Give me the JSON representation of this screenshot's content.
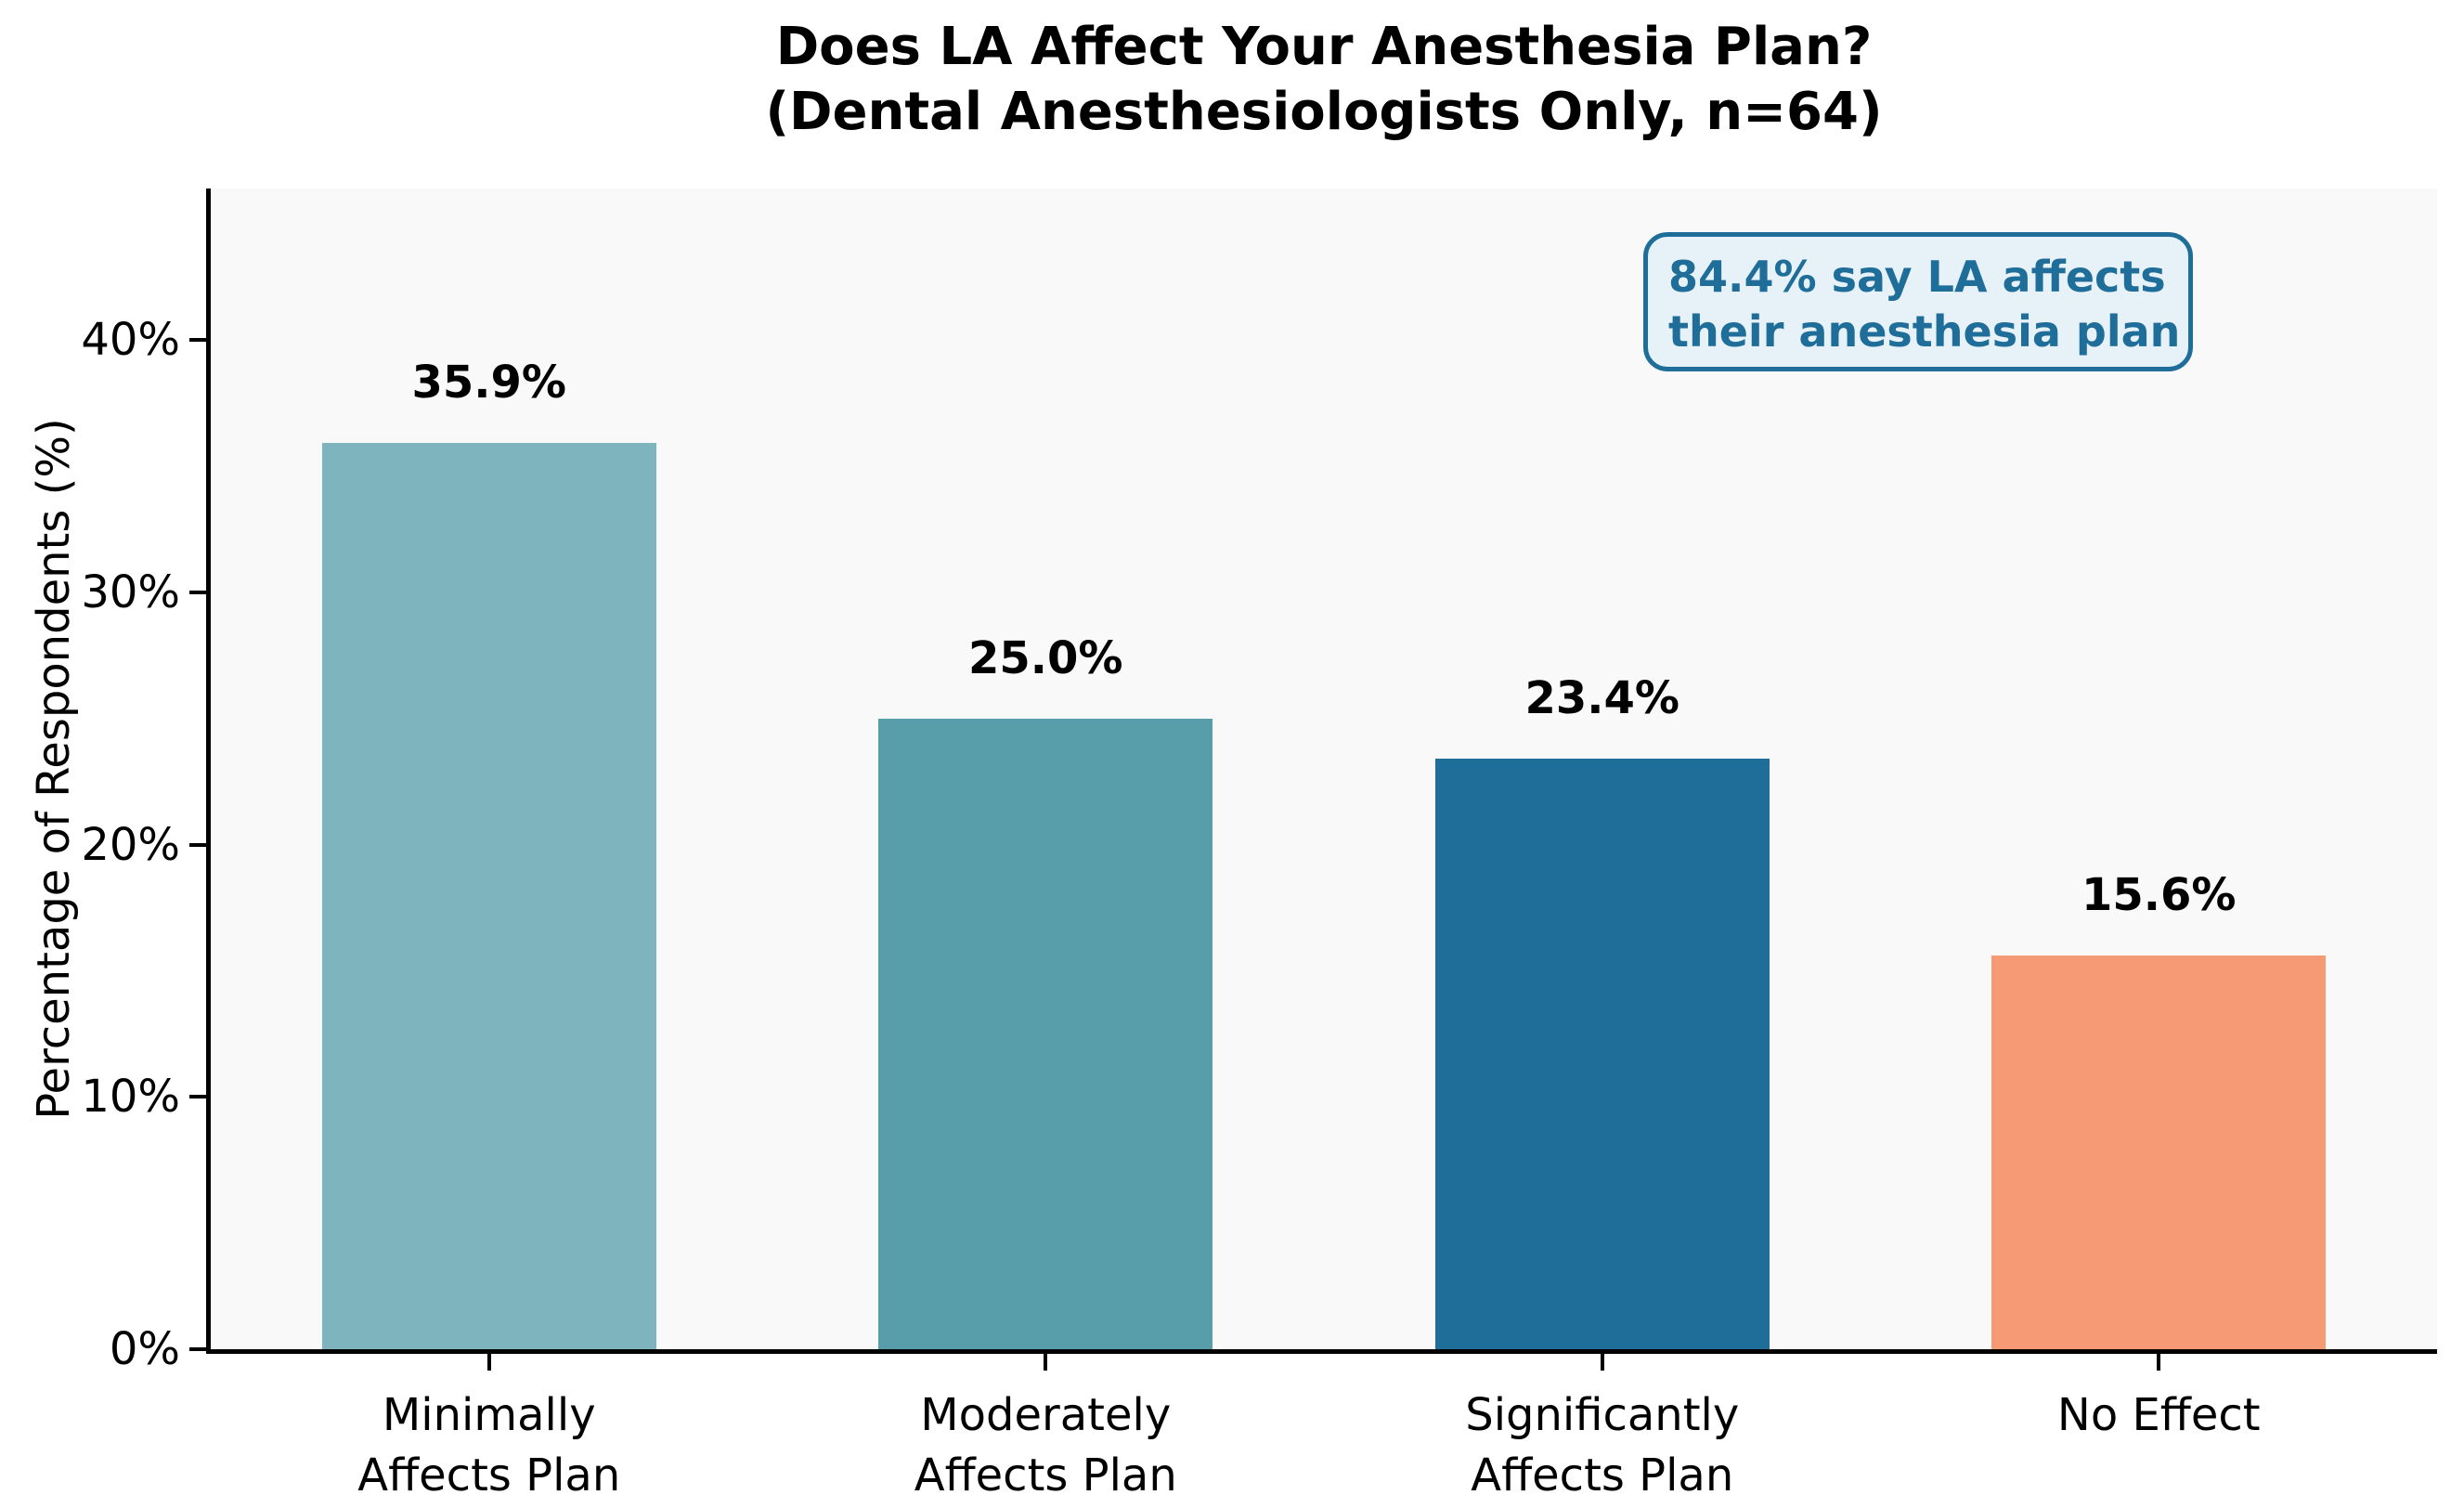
{
  "title": {
    "line1": "Does LA Affect Your Anesthesia Plan?",
    "line2": "(Dental Anesthesiologists Only, n=64)"
  },
  "annotation": {
    "line1": "84.4% say LA affects",
    "line2": "their anesthesia plan",
    "text_color": "#1f6e99",
    "border_color": "#1f6e99",
    "background_color": "#e7f1f8"
  },
  "chart_data": {
    "type": "bar",
    "title": "Does LA Affect Your Anesthesia Plan?\n(Dental Anesthesiologists Only, n=64)",
    "categories": [
      "Minimally\nAffects Plan",
      "Moderately\nAffects Plan",
      "Significantly\nAffects Plan",
      "No Effect"
    ],
    "values": [
      35.9,
      25.0,
      23.4,
      15.6
    ],
    "value_labels": [
      "35.9%",
      "25.0%",
      "23.4%",
      "15.6%"
    ],
    "bar_colors": [
      "#7eb4be",
      "#579eaa",
      "#1f6e99",
      "#f69a76"
    ],
    "xlabel": "",
    "ylabel": "Percentage of Respondents (%)",
    "ylim": [
      0,
      46
    ],
    "yticks": [
      0,
      10,
      20,
      30,
      40
    ],
    "ytick_labels": [
      "0%",
      "10%",
      "20%",
      "30%",
      "40%"
    ],
    "grid": false,
    "legend": null,
    "annotation": "84.4% say LA affects their anesthesia plan",
    "plot_background": "#f9f9f9",
    "figure_background": "#ffffff"
  }
}
